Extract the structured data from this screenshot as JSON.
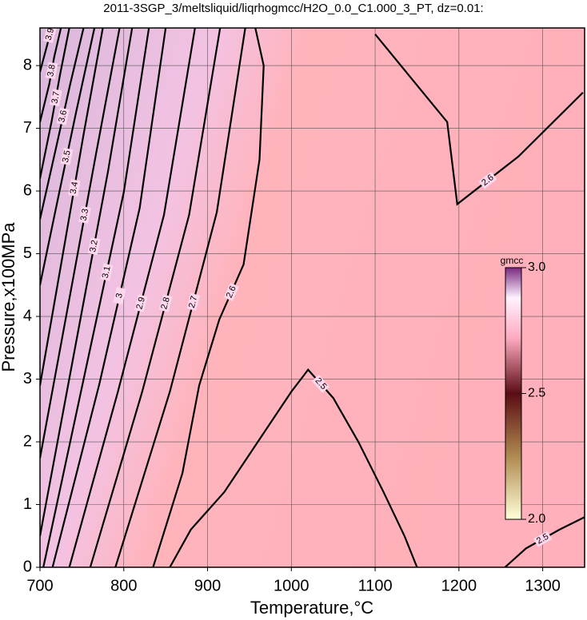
{
  "chart_data": {
    "type": "contour",
    "title": "2011-3SGP_3/meltsliquid/liqrhogmcc/H2O_0.0_C1.000_3_PT, dz=0.01:",
    "x_label": "Temperature,°C",
    "y_label": "Pressure,x100MPa",
    "xlim": [
      700,
      1350
    ],
    "ylim": [
      0,
      8.6
    ],
    "xticks": [
      700,
      800,
      900,
      1000,
      1100,
      1200,
      1300
    ],
    "yticks": [
      0,
      1,
      2,
      3,
      4,
      5,
      6,
      7,
      8
    ],
    "grid": true,
    "contours": [
      {
        "level": 2.5,
        "x": [
          855,
          880,
          920,
          960,
          1000,
          1020,
          1050,
          1080,
          1110,
          1135,
          1150
        ],
        "y": [
          0,
          0.6,
          1.2,
          2.0,
          2.8,
          3.15,
          2.7,
          2.0,
          1.2,
          0.5,
          0
        ]
      },
      {
        "level": 2.5,
        "x": [
          1255,
          1280,
          1320,
          1350
        ],
        "y": [
          0,
          0.3,
          0.6,
          0.8
        ]
      },
      {
        "level": 2.6,
        "x": [
          835,
          870,
          890,
          914,
          943,
          962,
          967,
          957
        ],
        "y": [
          0,
          1.5,
          2.9,
          3.95,
          4.83,
          6.5,
          8.0,
          8.6
        ]
      },
      {
        "level": 2.6,
        "x": [
          1100,
          1186,
          1198,
          1271,
          1348
        ],
        "y": [
          8.5,
          7.1,
          5.79,
          6.55,
          7.57
        ]
      },
      {
        "level": 2.7,
        "x": [
          790,
          855,
          911,
          945
        ],
        "y": [
          0,
          2.8,
          5.66,
          8.6
        ]
      },
      {
        "level": 2.8,
        "x": [
          760,
          822,
          878,
          915
        ],
        "y": [
          0,
          2.8,
          5.62,
          8.6
        ]
      },
      {
        "level": 2.9,
        "x": [
          735,
          793,
          848,
          885
        ],
        "y": [
          0,
          2.8,
          5.62,
          8.6
        ]
      },
      {
        "level": 3,
        "x": [
          715,
          771,
          819,
          850
        ],
        "y": [
          0,
          2.93,
          5.73,
          8.6
        ]
      },
      {
        "level": 3.1,
        "x": [
          704,
          759,
          800,
          830
        ],
        "y": [
          0,
          3.43,
          5.98,
          8.6
        ]
      },
      {
        "level": 3.2,
        "x": [
          700,
          748,
          781,
          810
        ],
        "y": [
          0.5,
          3.94,
          6.3,
          8.6
        ]
      },
      {
        "level": 3.3,
        "x": [
          700,
          740,
          767,
          795
        ],
        "y": [
          1.74,
          4.64,
          6.6,
          8.6
        ]
      },
      {
        "level": 3.4,
        "x": [
          700,
          730,
          752,
          775
        ],
        "y": [
          2.9,
          5.2,
          6.9,
          8.6
        ]
      },
      {
        "level": 3.5,
        "x": [
          700,
          721,
          743,
          765
        ],
        "y": [
          4.5,
          5.85,
          7.25,
          8.6
        ]
      },
      {
        "level": 3.6,
        "x": [
          700,
          719,
          736,
          752
        ],
        "y": [
          5.55,
          6.68,
          7.7,
          8.6
        ]
      },
      {
        "level": 3.7,
        "x": [
          700,
          714,
          724,
          735
        ],
        "y": [
          6.2,
          7.12,
          7.86,
          8.6
        ]
      },
      {
        "level": 3.8,
        "x": [
          700,
          711,
          717,
          725
        ],
        "y": [
          7.1,
          7.7,
          8.14,
          8.6
        ]
      },
      {
        "level": 3.9,
        "x": [
          700,
          710,
          714
        ],
        "y": [
          7.9,
          8.4,
          8.6
        ]
      }
    ],
    "colorbar": {
      "label": "gmcc",
      "lim": [
        2,
        3
      ],
      "ticks": [
        {
          "value": 2,
          "label": "2.0"
        },
        {
          "value": 2.5,
          "label": "2.5"
        },
        {
          "value": 3,
          "label": "3.0"
        }
      ]
    }
  }
}
